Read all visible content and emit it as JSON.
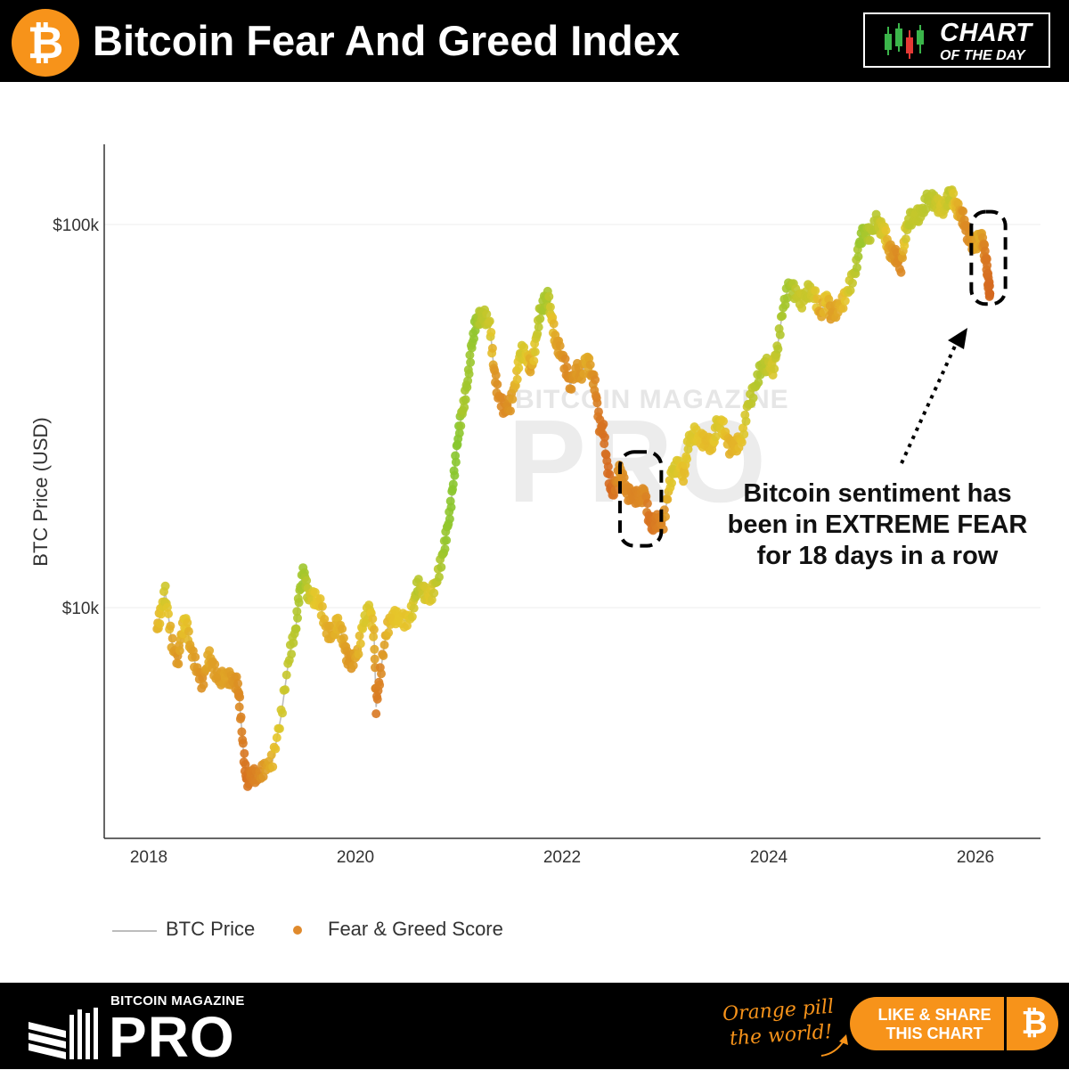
{
  "header": {
    "title": "Bitcoin Fear And Greed Index",
    "logo_glyph": "₿",
    "badge_line1": "CHART",
    "badge_line2": "OF THE DAY",
    "badge_icon": "candlestick-icon"
  },
  "chart_data": {
    "type": "scatter",
    "ylabel": "BTC Price (USD)",
    "y_scale": "log",
    "ylim": [
      3200,
      140000
    ],
    "xlim": [
      2017.6,
      2026.55
    ],
    "x_ticks": [
      2018,
      2020,
      2022,
      2024,
      2026
    ],
    "x_tick_labels": [
      "2018",
      "2020",
      "2022",
      "2024",
      "2026"
    ],
    "y_ticks": [
      10000,
      100000
    ],
    "y_tick_labels": [
      "$10k",
      "$100k"
    ],
    "grid": true,
    "legend_position": "bottom-left",
    "legend": [
      {
        "name": "BTC Price",
        "kind": "line",
        "color": "#bdbdbd"
      },
      {
        "name": "Fear & Greed Score",
        "kind": "marker",
        "color": "#e08a2c"
      }
    ],
    "color_scale": {
      "fear": "#d2571e",
      "neutral": "#e6c62a",
      "greed": "#7cc62e"
    },
    "series": [
      {
        "name": "BTC Price",
        "points": [
          [
            2018.08,
            8800,
            40
          ],
          [
            2018.12,
            9800,
            48
          ],
          [
            2018.16,
            11000,
            62
          ],
          [
            2018.22,
            8200,
            35
          ],
          [
            2018.28,
            7200,
            28
          ],
          [
            2018.32,
            8700,
            42
          ],
          [
            2018.36,
            9300,
            52
          ],
          [
            2018.4,
            7900,
            35
          ],
          [
            2018.46,
            7000,
            30
          ],
          [
            2018.52,
            6300,
            25
          ],
          [
            2018.58,
            7500,
            38
          ],
          [
            2018.62,
            7000,
            32
          ],
          [
            2018.68,
            6500,
            30
          ],
          [
            2018.74,
            6600,
            35
          ],
          [
            2018.8,
            6500,
            30
          ],
          [
            2018.86,
            6300,
            26
          ],
          [
            2018.88,
            5600,
            22
          ],
          [
            2018.92,
            4100,
            15
          ],
          [
            2018.95,
            3500,
            12
          ],
          [
            2018.99,
            3700,
            18
          ],
          [
            2019.05,
            3600,
            20
          ],
          [
            2019.12,
            3800,
            30
          ],
          [
            2019.2,
            4000,
            42
          ],
          [
            2019.28,
            5200,
            58
          ],
          [
            2019.36,
            7500,
            68
          ],
          [
            2019.42,
            8700,
            72
          ],
          [
            2019.46,
            11000,
            78
          ],
          [
            2019.5,
            12500,
            84
          ],
          [
            2019.54,
            10800,
            66
          ],
          [
            2019.6,
            10600,
            52
          ],
          [
            2019.66,
            10200,
            48
          ],
          [
            2019.72,
            8700,
            38
          ],
          [
            2019.78,
            8500,
            36
          ],
          [
            2019.83,
            9200,
            44
          ],
          [
            2019.88,
            8300,
            36
          ],
          [
            2019.92,
            7400,
            30
          ],
          [
            2019.96,
            7200,
            28
          ],
          [
            2020.02,
            7600,
            38
          ],
          [
            2020.08,
            9200,
            56
          ],
          [
            2020.14,
            10000,
            56
          ],
          [
            2020.18,
            8500,
            40
          ],
          [
            2020.2,
            5500,
            15
          ],
          [
            2020.24,
            6700,
            20
          ],
          [
            2020.3,
            8700,
            40
          ],
          [
            2020.36,
            9500,
            48
          ],
          [
            2020.42,
            9400,
            50
          ],
          [
            2020.5,
            9200,
            48
          ],
          [
            2020.56,
            10000,
            56
          ],
          [
            2020.6,
            11500,
            74
          ],
          [
            2020.66,
            11000,
            60
          ],
          [
            2020.72,
            10600,
            52
          ],
          [
            2020.78,
            11600,
            66
          ],
          [
            2020.84,
            13500,
            82
          ],
          [
            2020.88,
            15500,
            88
          ],
          [
            2020.92,
            18200,
            92
          ],
          [
            2020.96,
            23000,
            94
          ],
          [
            2021.0,
            29000,
            95
          ],
          [
            2021.04,
            33000,
            78
          ],
          [
            2021.08,
            38000,
            82
          ],
          [
            2021.12,
            47000,
            86
          ],
          [
            2021.16,
            55000,
            90
          ],
          [
            2021.2,
            57000,
            74
          ],
          [
            2021.24,
            58000,
            70
          ],
          [
            2021.3,
            55000,
            62
          ],
          [
            2021.34,
            42000,
            30
          ],
          [
            2021.38,
            36000,
            24
          ],
          [
            2021.44,
            33000,
            22
          ],
          [
            2021.5,
            34000,
            28
          ],
          [
            2021.56,
            40000,
            44
          ],
          [
            2021.6,
            47000,
            60
          ],
          [
            2021.66,
            45000,
            52
          ],
          [
            2021.7,
            42000,
            32
          ],
          [
            2021.74,
            48000,
            56
          ],
          [
            2021.78,
            58000,
            72
          ],
          [
            2021.82,
            62000,
            80
          ],
          [
            2021.86,
            65000,
            78
          ],
          [
            2021.9,
            57000,
            50
          ],
          [
            2021.94,
            49000,
            34
          ],
          [
            2021.98,
            47000,
            30
          ],
          [
            2022.04,
            42000,
            22
          ],
          [
            2022.08,
            38000,
            24
          ],
          [
            2022.14,
            42000,
            30
          ],
          [
            2022.18,
            40000,
            28
          ],
          [
            2022.24,
            45000,
            40
          ],
          [
            2022.28,
            41000,
            30
          ],
          [
            2022.32,
            38000,
            22
          ],
          [
            2022.36,
            30000,
            14
          ],
          [
            2022.4,
            29000,
            12
          ],
          [
            2022.44,
            23000,
            10
          ],
          [
            2022.48,
            20000,
            8
          ],
          [
            2022.52,
            21000,
            18
          ],
          [
            2022.56,
            23000,
            28
          ],
          [
            2022.6,
            21000,
            24
          ],
          [
            2022.64,
            19800,
            22
          ],
          [
            2022.7,
            19500,
            20
          ],
          [
            2022.76,
            19300,
            22
          ],
          [
            2022.8,
            20000,
            24
          ],
          [
            2022.84,
            17000,
            12
          ],
          [
            2022.88,
            16500,
            14
          ],
          [
            2022.92,
            16800,
            18
          ],
          [
            2022.98,
            16600,
            22
          ],
          [
            2023.04,
            21000,
            48
          ],
          [
            2023.08,
            23000,
            58
          ],
          [
            2023.14,
            23500,
            52
          ],
          [
            2023.18,
            22000,
            44
          ],
          [
            2023.22,
            27000,
            56
          ],
          [
            2023.28,
            28500,
            54
          ],
          [
            2023.34,
            27500,
            48
          ],
          [
            2023.4,
            27000,
            44
          ],
          [
            2023.46,
            26500,
            46
          ],
          [
            2023.5,
            30500,
            58
          ],
          [
            2023.56,
            29500,
            50
          ],
          [
            2023.62,
            26200,
            40
          ],
          [
            2023.68,
            26500,
            42
          ],
          [
            2023.74,
            27500,
            48
          ],
          [
            2023.8,
            34000,
            66
          ],
          [
            2023.86,
            37000,
            70
          ],
          [
            2023.92,
            42000,
            76
          ],
          [
            2023.98,
            43000,
            68
          ],
          [
            2024.04,
            42000,
            56
          ],
          [
            2024.08,
            47000,
            70
          ],
          [
            2024.14,
            61000,
            80
          ],
          [
            2024.2,
            70000,
            82
          ],
          [
            2024.26,
            66000,
            68
          ],
          [
            2024.32,
            63000,
            62
          ],
          [
            2024.38,
            67000,
            66
          ],
          [
            2024.44,
            66000,
            58
          ],
          [
            2024.5,
            58000,
            32
          ],
          [
            2024.56,
            65000,
            52
          ],
          [
            2024.6,
            58000,
            30
          ],
          [
            2024.66,
            60000,
            36
          ],
          [
            2024.72,
            63000,
            44
          ],
          [
            2024.78,
            69000,
            60
          ],
          [
            2024.84,
            76000,
            70
          ],
          [
            2024.88,
            90000,
            86
          ],
          [
            2024.92,
            96000,
            84
          ],
          [
            2024.98,
            94000,
            70
          ],
          [
            2025.04,
            102000,
            72
          ],
          [
            2025.08,
            98000,
            62
          ],
          [
            2025.12,
            96000,
            56
          ],
          [
            2025.16,
            86000,
            34
          ],
          [
            2025.2,
            84000,
            28
          ],
          [
            2025.24,
            82000,
            24
          ],
          [
            2025.28,
            78000,
            22
          ],
          [
            2025.32,
            94000,
            56
          ],
          [
            2025.36,
            103000,
            70
          ],
          [
            2025.42,
            105000,
            66
          ],
          [
            2025.48,
            107000,
            68
          ],
          [
            2025.54,
            118000,
            72
          ],
          [
            2025.6,
            115000,
            68
          ],
          [
            2025.64,
            112000,
            60
          ],
          [
            2025.68,
            110000,
            56
          ],
          [
            2025.72,
            114000,
            62
          ],
          [
            2025.76,
            122000,
            70
          ],
          [
            2025.8,
            113000,
            46
          ],
          [
            2025.84,
            108000,
            38
          ],
          [
            2025.88,
            104000,
            26
          ],
          [
            2025.92,
            95000,
            22
          ],
          [
            2025.96,
            90000,
            26
          ],
          [
            2026.0,
            88000,
            32
          ],
          [
            2026.04,
            93000,
            40
          ],
          [
            2026.07,
            90000,
            28
          ],
          [
            2026.09,
            84000,
            18
          ],
          [
            2026.11,
            78000,
            14
          ],
          [
            2026.12,
            72000,
            12
          ],
          [
            2026.13,
            69000,
            10
          ],
          [
            2026.14,
            66000,
            8
          ]
        ]
      }
    ],
    "annotation": {
      "lines": [
        "Bitcoin sentiment has",
        "been in EXTREME FEAR",
        "for 18 days in a row"
      ]
    },
    "highlight_boxes": [
      {
        "x0": 2022.56,
        "x1": 2022.96,
        "y0": 14500,
        "y1": 25500
      },
      {
        "x0": 2025.96,
        "x1": 2026.29,
        "y0": 62000,
        "y1": 108000
      }
    ]
  },
  "footer": {
    "brand_small": "BITCOIN MAGAZINE",
    "brand_large": "PRO",
    "tagline_line1": "Orange pill",
    "tagline_line2": "the world!",
    "share_line1": "LIKE & SHARE",
    "share_line2": "THIS CHART",
    "share_glyph": "₿"
  },
  "watermark": {
    "line1": "BITCOIN MAGAZINE",
    "line2": "PRO"
  }
}
